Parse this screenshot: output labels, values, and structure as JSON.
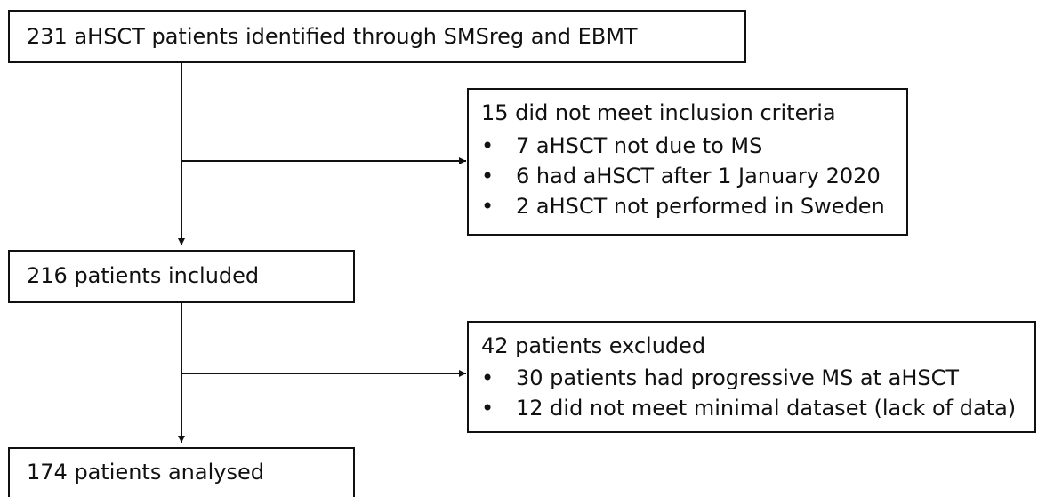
{
  "nodes": [
    {
      "label": "231 aHSCT patients identified through SMSreg and EBMT"
    },
    {
      "label": "15 did not meet inclusion criteria",
      "items": [
        "7 aHSCT not due to MS",
        "6 had aHSCT after 1 January 2020",
        "2 aHSCT not performed in Sweden"
      ]
    },
    {
      "label": "216 patients included"
    },
    {
      "label": "42 patients excluded",
      "items": [
        "30 patients had progressive MS at aHSCT",
        "12 did not meet minimal dataset (lack of data)"
      ]
    },
    {
      "label": "174 patients analysed"
    }
  ]
}
